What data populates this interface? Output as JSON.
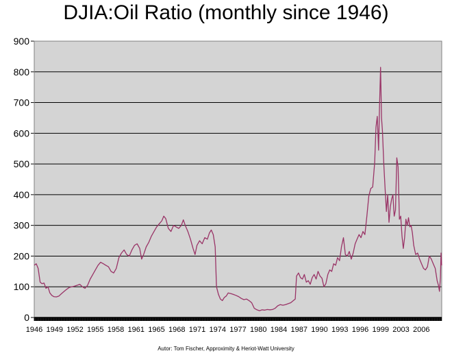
{
  "title": "DJIA:Oil Ratio (monthly since 1946)",
  "credit": "Autor: Tom Fischer, Approximity & Heriot-Watt University",
  "colors": {
    "plot_background": "#d4d4d4",
    "line": "#993366",
    "grid": "#000000"
  },
  "chart_data": {
    "type": "line",
    "title": "DJIA:Oil Ratio (monthly since 1946)",
    "xlabel": "",
    "ylabel": "",
    "grid": true,
    "legend": "none",
    "xlim": [
      1946.0,
      2008.6
    ],
    "ylim": [
      0,
      900
    ],
    "yticks": [
      0,
      100,
      200,
      300,
      400,
      500,
      600,
      700,
      800,
      900
    ],
    "xtick_labels": [
      "1946",
      "1949",
      "1952",
      "1955",
      "1958",
      "1961",
      "1965",
      "1968",
      "1971",
      "1974",
      "1977",
      "1980",
      "1984",
      "1987",
      "1990",
      "1993",
      "1996",
      "1999",
      "2003",
      "2006"
    ],
    "series": [
      {
        "points": [
          [
            1946.0,
            170
          ],
          [
            1946.3,
            175
          ],
          [
            1946.6,
            160
          ],
          [
            1946.9,
            115
          ],
          [
            1947.2,
            110
          ],
          [
            1947.5,
            112
          ],
          [
            1947.8,
            95
          ],
          [
            1948.1,
            100
          ],
          [
            1948.4,
            80
          ],
          [
            1948.7,
            72
          ],
          [
            1949.0,
            68
          ],
          [
            1949.4,
            67
          ],
          [
            1949.8,
            70
          ],
          [
            1950.2,
            78
          ],
          [
            1950.6,
            85
          ],
          [
            1951.0,
            92
          ],
          [
            1951.4,
            98
          ],
          [
            1951.8,
            100
          ],
          [
            1952.2,
            102
          ],
          [
            1952.6,
            105
          ],
          [
            1953.0,
            108
          ],
          [
            1953.4,
            100
          ],
          [
            1953.8,
            95
          ],
          [
            1954.2,
            105
          ],
          [
            1954.6,
            125
          ],
          [
            1955.0,
            140
          ],
          [
            1955.4,
            155
          ],
          [
            1955.8,
            170
          ],
          [
            1956.2,
            180
          ],
          [
            1956.6,
            175
          ],
          [
            1957.0,
            170
          ],
          [
            1957.4,
            165
          ],
          [
            1957.8,
            150
          ],
          [
            1958.2,
            145
          ],
          [
            1958.6,
            160
          ],
          [
            1959.0,
            195
          ],
          [
            1959.4,
            210
          ],
          [
            1959.8,
            220
          ],
          [
            1960.2,
            205
          ],
          [
            1960.6,
            200
          ],
          [
            1961.0,
            220
          ],
          [
            1961.4,
            235
          ],
          [
            1961.8,
            240
          ],
          [
            1962.2,
            225
          ],
          [
            1962.5,
            190
          ],
          [
            1962.8,
            205
          ],
          [
            1963.2,
            230
          ],
          [
            1963.6,
            245
          ],
          [
            1964.0,
            265
          ],
          [
            1964.4,
            280
          ],
          [
            1964.8,
            295
          ],
          [
            1965.2,
            305
          ],
          [
            1965.6,
            315
          ],
          [
            1965.9,
            330
          ],
          [
            1966.2,
            322
          ],
          [
            1966.6,
            290
          ],
          [
            1967.0,
            280
          ],
          [
            1967.4,
            300
          ],
          [
            1967.8,
            295
          ],
          [
            1968.2,
            290
          ],
          [
            1968.6,
            300
          ],
          [
            1968.9,
            318
          ],
          [
            1969.2,
            300
          ],
          [
            1969.6,
            280
          ],
          [
            1970.0,
            255
          ],
          [
            1970.4,
            225
          ],
          [
            1970.7,
            205
          ],
          [
            1971.0,
            235
          ],
          [
            1971.4,
            250
          ],
          [
            1971.8,
            240
          ],
          [
            1972.2,
            260
          ],
          [
            1972.6,
            255
          ],
          [
            1972.9,
            275
          ],
          [
            1973.2,
            285
          ],
          [
            1973.5,
            270
          ],
          [
            1973.8,
            230
          ],
          [
            1974.0,
            100
          ],
          [
            1974.3,
            75
          ],
          [
            1974.6,
            60
          ],
          [
            1974.9,
            55
          ],
          [
            1975.2,
            65
          ],
          [
            1975.5,
            70
          ],
          [
            1975.8,
            80
          ],
          [
            1976.2,
            78
          ],
          [
            1976.6,
            75
          ],
          [
            1977.0,
            72
          ],
          [
            1977.4,
            68
          ],
          [
            1977.8,
            62
          ],
          [
            1978.2,
            58
          ],
          [
            1978.6,
            60
          ],
          [
            1979.0,
            55
          ],
          [
            1979.4,
            48
          ],
          [
            1979.8,
            30
          ],
          [
            1980.2,
            25
          ],
          [
            1980.6,
            22
          ],
          [
            1981.0,
            25
          ],
          [
            1981.4,
            24
          ],
          [
            1981.8,
            26
          ],
          [
            1982.2,
            25
          ],
          [
            1982.6,
            26
          ],
          [
            1983.0,
            30
          ],
          [
            1983.4,
            38
          ],
          [
            1983.8,
            42
          ],
          [
            1984.2,
            40
          ],
          [
            1984.6,
            42
          ],
          [
            1985.0,
            45
          ],
          [
            1985.4,
            48
          ],
          [
            1985.8,
            55
          ],
          [
            1986.1,
            60
          ],
          [
            1986.3,
            135
          ],
          [
            1986.6,
            145
          ],
          [
            1986.9,
            130
          ],
          [
            1987.2,
            125
          ],
          [
            1987.5,
            140
          ],
          [
            1987.8,
            115
          ],
          [
            1988.1,
            120
          ],
          [
            1988.4,
            108
          ],
          [
            1988.7,
            130
          ],
          [
            1989.0,
            140
          ],
          [
            1989.3,
            125
          ],
          [
            1989.6,
            150
          ],
          [
            1989.9,
            135
          ],
          [
            1990.2,
            128
          ],
          [
            1990.5,
            100
          ],
          [
            1990.8,
            110
          ],
          [
            1991.1,
            140
          ],
          [
            1991.4,
            155
          ],
          [
            1991.7,
            150
          ],
          [
            1992.0,
            175
          ],
          [
            1992.3,
            170
          ],
          [
            1992.6,
            195
          ],
          [
            1992.9,
            185
          ],
          [
            1993.2,
            230
          ],
          [
            1993.5,
            260
          ],
          [
            1993.8,
            205
          ],
          [
            1994.1,
            200
          ],
          [
            1994.4,
            215
          ],
          [
            1994.7,
            190
          ],
          [
            1995.0,
            210
          ],
          [
            1995.3,
            240
          ],
          [
            1995.6,
            255
          ],
          [
            1995.9,
            270
          ],
          [
            1996.2,
            260
          ],
          [
            1996.5,
            280
          ],
          [
            1996.8,
            270
          ],
          [
            1997.1,
            330
          ],
          [
            1997.4,
            395
          ],
          [
            1997.7,
            420
          ],
          [
            1998.0,
            425
          ],
          [
            1998.3,
            505
          ],
          [
            1998.5,
            620
          ],
          [
            1998.7,
            655
          ],
          [
            1998.9,
            545
          ],
          [
            1999.05,
            690
          ],
          [
            1999.2,
            815
          ],
          [
            1999.35,
            650
          ],
          [
            1999.5,
            605
          ],
          [
            1999.7,
            500
          ],
          [
            1999.9,
            420
          ],
          [
            2000.1,
            345
          ],
          [
            2000.3,
            400
          ],
          [
            2000.5,
            310
          ],
          [
            2000.7,
            360
          ],
          [
            2000.9,
            385
          ],
          [
            2001.1,
            400
          ],
          [
            2001.3,
            330
          ],
          [
            2001.5,
            350
          ],
          [
            2001.7,
            520
          ],
          [
            2001.9,
            490
          ],
          [
            2002.1,
            320
          ],
          [
            2002.3,
            330
          ],
          [
            2002.5,
            265
          ],
          [
            2002.7,
            225
          ],
          [
            2002.9,
            260
          ],
          [
            2003.1,
            320
          ],
          [
            2003.3,
            300
          ],
          [
            2003.5,
            325
          ],
          [
            2003.7,
            295
          ],
          [
            2003.9,
            300
          ],
          [
            2004.1,
            275
          ],
          [
            2004.3,
            235
          ],
          [
            2004.6,
            205
          ],
          [
            2004.9,
            210
          ],
          [
            2005.2,
            190
          ],
          [
            2005.5,
            175
          ],
          [
            2005.8,
            160
          ],
          [
            2006.1,
            155
          ],
          [
            2006.4,
            165
          ],
          [
            2006.7,
            200
          ],
          [
            2007.0,
            190
          ],
          [
            2007.3,
            175
          ],
          [
            2007.6,
            160
          ],
          [
            2007.9,
            120
          ],
          [
            2008.1,
            105
          ],
          [
            2008.25,
            85
          ],
          [
            2008.4,
            130
          ],
          [
            2008.5,
            210
          ],
          [
            2008.6,
            170
          ]
        ]
      }
    ]
  }
}
